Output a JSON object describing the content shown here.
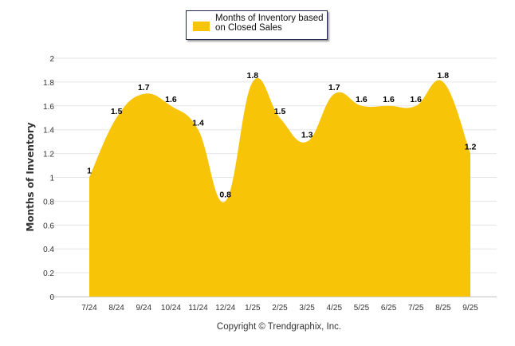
{
  "chart_data": {
    "type": "area",
    "title": "",
    "xlabel": "",
    "ylabel": "Months of Inventory",
    "categories": [
      "7/24",
      "8/24",
      "9/24",
      "10/24",
      "11/24",
      "12/24",
      "1/25",
      "2/25",
      "3/25",
      "4/25",
      "5/25",
      "6/25",
      "7/25",
      "8/25",
      "9/25"
    ],
    "series": [
      {
        "name": "Months of Inventory based on Closed Sales",
        "values": [
          1,
          1.5,
          1.7,
          1.6,
          1.4,
          0.8,
          1.8,
          1.5,
          1.3,
          1.7,
          1.6,
          1.6,
          1.6,
          1.8,
          1.2
        ],
        "labels": [
          "1",
          "1.5",
          "1.7",
          "1.6",
          "1.4",
          "0.8",
          "1.8",
          "1.5",
          "1.3",
          "1.7",
          "1.6",
          "1.6",
          "1.6",
          "1.8",
          "1.2"
        ]
      }
    ],
    "ylim": [
      0,
      2
    ],
    "yticks": [
      "0",
      "0.2",
      "0.4",
      "0.6",
      "0.8",
      "1",
      "1.2",
      "1.4",
      "1.6",
      "1.8",
      "2"
    ],
    "grid": true,
    "legend": "top-center",
    "color": "#f8c408"
  },
  "legend": {
    "line1": "Months of Inventory based",
    "line2": "on Closed Sales"
  },
  "footer": {
    "copyright": "Copyright © Trendgraphix, Inc."
  }
}
